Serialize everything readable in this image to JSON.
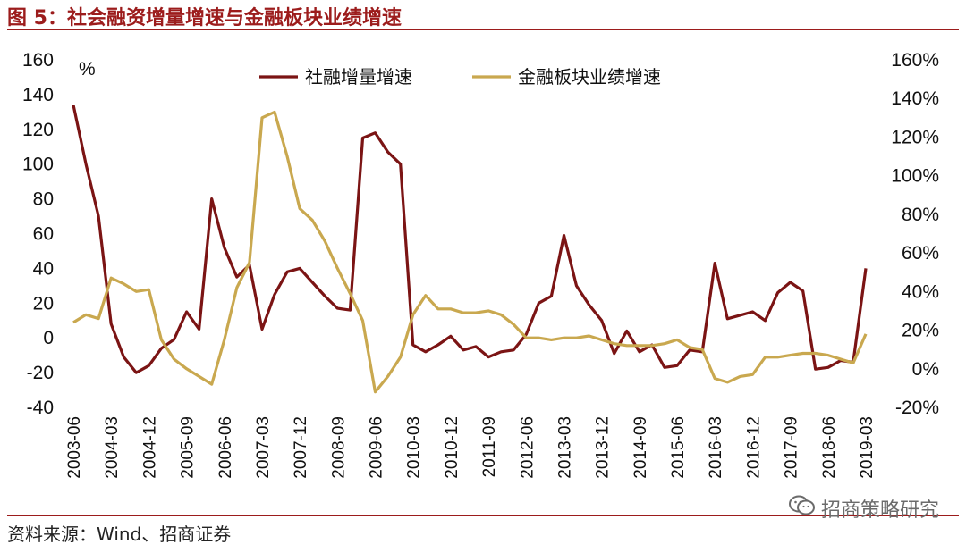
{
  "header": {
    "title": "图 5：社会融资增量增速与金融板块业绩增速"
  },
  "footer": {
    "source": "资料来源：Wind、招商证券",
    "watermark": "招商策略研究"
  },
  "colors": {
    "series1": "#7b1414",
    "series2": "#c9a84f",
    "accent": "#9c1c1c"
  },
  "chart_data": {
    "type": "line",
    "left_axis": {
      "unit": "%",
      "ylim": [
        -40,
        160
      ],
      "ticks": [
        "-40",
        "-20",
        "0",
        "20",
        "40",
        "60",
        "80",
        "100",
        "120",
        "140",
        "160"
      ]
    },
    "right_axis": {
      "ylim": [
        -20,
        160
      ],
      "ticks": [
        "-20%",
        "0%",
        "20%",
        "40%",
        "60%",
        "80%",
        "100%",
        "120%",
        "140%",
        "160%"
      ]
    },
    "x_ticks": [
      "2003-06",
      "2004-03",
      "2004-12",
      "2005-09",
      "2006-06",
      "2007-03",
      "2007-12",
      "2008-09",
      "2009-06",
      "2010-03",
      "2010-12",
      "2011-09",
      "2012-06",
      "2013-03",
      "2013-12",
      "2014-09",
      "2015-06",
      "2016-03",
      "2016-12",
      "2017-09",
      "2018-06",
      "2019-03"
    ],
    "legend_position": "top-center",
    "series": [
      {
        "name": "社融增量增速",
        "axis": "left",
        "values": [
          134,
          100,
          70,
          8,
          -11,
          -20,
          -16,
          -6,
          -1,
          15,
          5,
          80,
          52,
          35,
          42,
          5,
          25,
          38,
          40,
          32,
          24,
          17,
          16,
          115,
          118,
          107,
          100,
          -4,
          -8,
          -4,
          1,
          -7,
          -5,
          -11,
          -8,
          -7,
          2,
          20,
          24,
          59,
          30,
          19,
          10,
          -9,
          4,
          -8,
          -4,
          -17,
          -16,
          -7,
          -8,
          43,
          11,
          13,
          15,
          10,
          26,
          32,
          27,
          -18,
          -17,
          -13,
          -14,
          40
        ]
      },
      {
        "name": "金融板块业绩增速",
        "axis": "right",
        "values": [
          24,
          28,
          26,
          47,
          44,
          40,
          41,
          15,
          5,
          0,
          -4,
          -8,
          15,
          42,
          55,
          130,
          133,
          110,
          83,
          77,
          66,
          52,
          39,
          25,
          -12,
          -4,
          6,
          28,
          38,
          31,
          31,
          29,
          29,
          30,
          28,
          23,
          16,
          16,
          15,
          16,
          16,
          17,
          15,
          13,
          12,
          12,
          12,
          13,
          15,
          11,
          10,
          -5,
          -7,
          -4,
          -3,
          6,
          6,
          7,
          8,
          8,
          7,
          5,
          3,
          18
        ]
      }
    ]
  }
}
